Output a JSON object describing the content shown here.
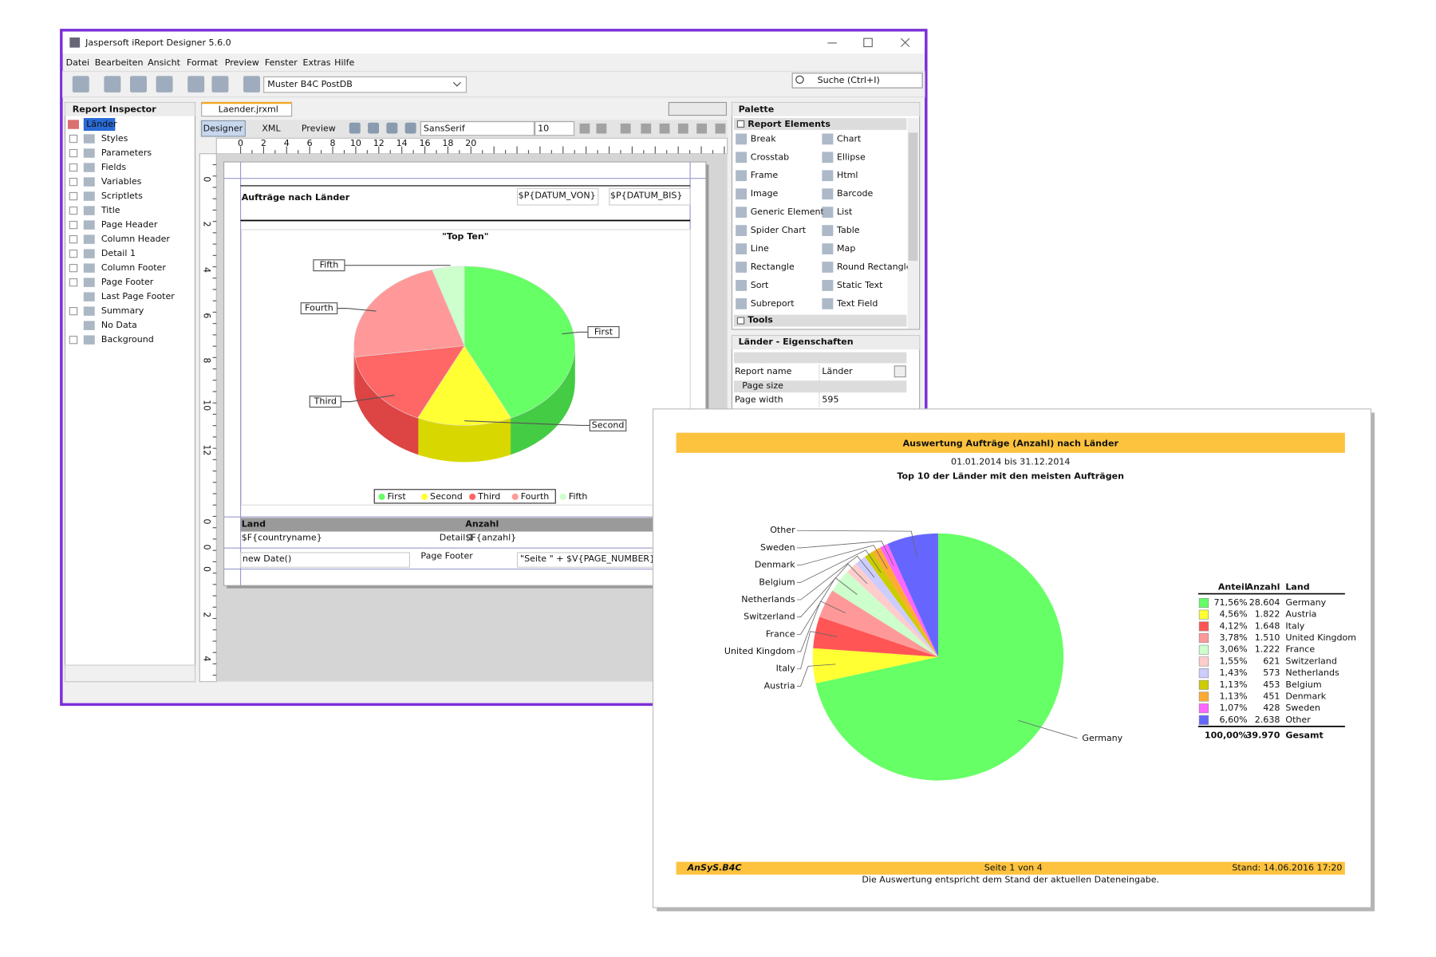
{
  "window": {
    "title": "Jaspersoft iReport Designer 5.6.0",
    "menu": [
      "Datei",
      "Bearbeiten",
      "Ansicht",
      "Format",
      "Preview",
      "Fenster",
      "Extras",
      "Hilfe"
    ],
    "datasource": "Muster B4C PostDB",
    "search": "Suche (Ctrl+I)"
  },
  "inspector": {
    "title": "Report Inspector",
    "items": [
      "Länder",
      "Styles",
      "Parameters",
      "Fields",
      "Variables",
      "Scriptlets",
      "Title",
      "Page Header",
      "Column Header",
      "Detail 1",
      "Column Footer",
      "Page Footer",
      "Last Page Footer",
      "Summary",
      "No Data",
      "Background"
    ]
  },
  "editor": {
    "tab": "Laender.jrxml",
    "views": [
      "Designer",
      "XML",
      "Preview"
    ],
    "font": "SansSerif",
    "font_size": "10",
    "ruler": [
      "0",
      "2",
      "4",
      "6",
      "8",
      "10",
      "12",
      "14",
      "16",
      "18",
      "20"
    ],
    "vruler": [
      "0",
      "2",
      "4",
      "6",
      "8",
      "10",
      "12",
      "0",
      "0",
      "0",
      "2",
      "4"
    ],
    "report_title": "Aufträge nach Länder",
    "params": [
      "$P{DATUM_VON}",
      "$P{DATUM_BIS}"
    ],
    "chart_title": "\"Top Ten\"",
    "slices": [
      "First",
      "Second",
      "Third",
      "Fourth",
      "Fifth"
    ],
    "columns": [
      "Land",
      "Anzahl"
    ],
    "fields": [
      "$F{countryname}",
      "$F{anzahl}"
    ],
    "band_labels": [
      "Detail 1",
      "Page Footer"
    ],
    "footer_fields": [
      "new Date()",
      "\"Seite \" + $V{PAGE_NUMBER} + \""
    ]
  },
  "palette": {
    "title": "Palette",
    "section": "Report Elements",
    "items": [
      "Break",
      "Chart",
      "Crosstab",
      "Ellipse",
      "Frame",
      "Html",
      "Image",
      "Barcode",
      "Generic Element",
      "List",
      "Spider Chart",
      "Table",
      "Line",
      "Map",
      "Rectangle",
      "Round Rectangle",
      "Sort",
      "Static Text",
      "Subreport",
      "Text Field"
    ],
    "tools": "Tools"
  },
  "properties": {
    "title": "Länder - Eigenschaften",
    "report_name": [
      "Report name",
      "Länder"
    ],
    "section": "Page size",
    "page_width": [
      "Page width",
      "595"
    ]
  },
  "report": {
    "title": "Auswertung Aufträge (Anzahl) nach Länder",
    "dates": "01.01.2014  bis  31.12.2014",
    "subtitle": "Top 10 der Länder mit den meisten Aufträgen",
    "table": {
      "headers": [
        "Anteil",
        "Anzahl",
        "Land"
      ],
      "names": [
        "Germany",
        "Austria",
        "Italy",
        "United Kingdom",
        "France",
        "Switzerland",
        "Netherlands",
        "Belgium",
        "Denmark",
        "Sweden",
        "Other"
      ],
      "values": [
        71.56,
        4.56,
        4.12,
        3.78,
        3.06,
        1.55,
        1.43,
        1.13,
        1.13,
        1.07,
        6.6
      ],
      "value_labels": [
        "71,56%",
        "4,56%",
        "4,12%",
        "3,78%",
        "3,06%",
        "1,55%",
        "1,43%",
        "1,13%",
        "1,13%",
        "1,07%",
        "6,60%"
      ],
      "counts": [
        "28.604",
        "1.822",
        "1.648",
        "1.510",
        "1.222",
        "621",
        "573",
        "453",
        "451",
        "428",
        "2.638"
      ],
      "colors": [
        "#66ff66",
        "#ffff33",
        "#ff5555",
        "#ff9999",
        "#ccffcc",
        "#ffcccc",
        "#ccccff",
        "#cccc00",
        "#ffaa33",
        "#ff66ff",
        "#6666ff"
      ],
      "total": [
        "100,00%",
        "39.970",
        "Gesamt"
      ]
    },
    "footer": {
      "logo": "AnSyS.B4C",
      "page": "Seite 1 von 4",
      "stand": "Stand: 14.06.2016  17:20",
      "note": "Die Auswertung entspricht dem Stand der aktuellen Dateneingabe."
    }
  }
}
